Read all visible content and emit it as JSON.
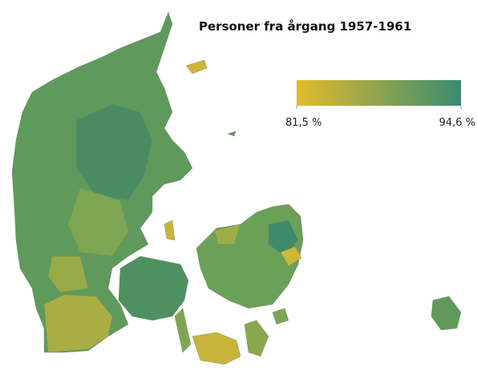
{
  "title": "Personer fra årgang 1957-1961",
  "legend": {
    "min": {
      "value": 81.5,
      "label": "81,5 %"
    },
    "max": {
      "value": 94.6,
      "label": "94,6 %"
    },
    "colors": [
      "#e2bc2c",
      "#3b8b72"
    ]
  }
}
